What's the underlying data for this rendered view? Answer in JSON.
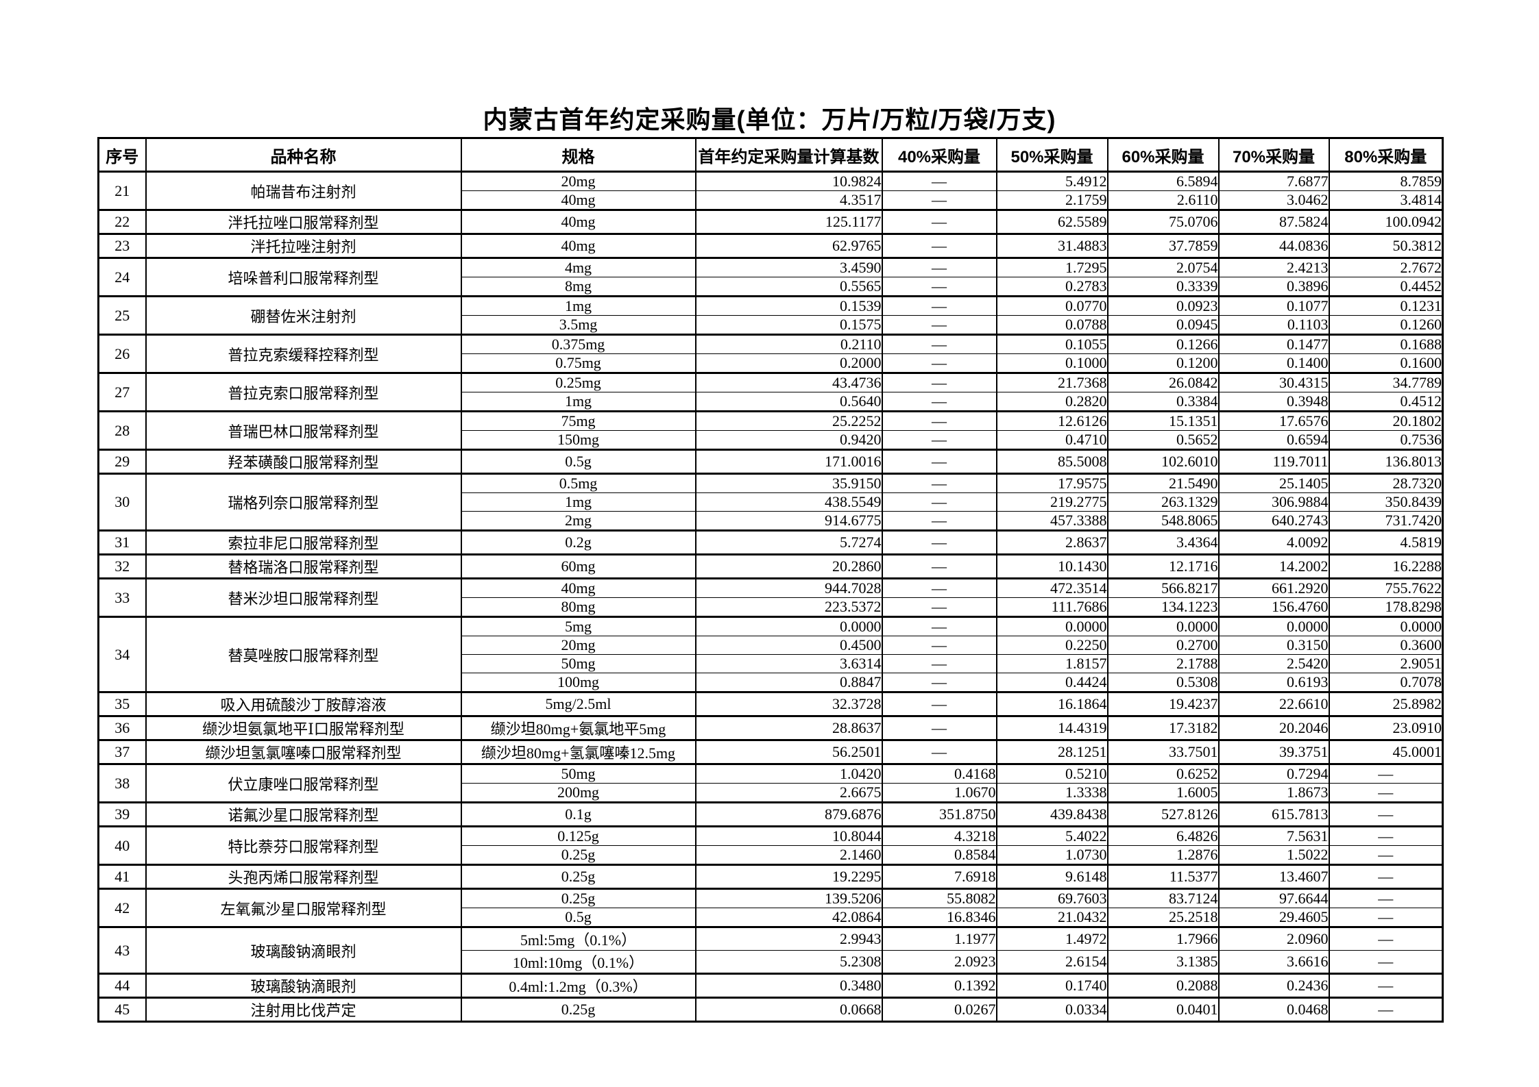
{
  "page": {
    "title": "内蒙古首年约定采购量(单位：万片/万粒/万袋/万支)"
  },
  "table": {
    "dash": "—",
    "headers": [
      "序号",
      "品种名称",
      "规格",
      "首年约定采购量计算基数",
      "40%采购量",
      "50%采购量",
      "60%采购量",
      "70%采购量",
      "80%采购量"
    ],
    "groups": [
      {
        "no": "21",
        "name": "帕瑞昔布注射剂",
        "rows": [
          {
            "spec": "20mg",
            "base": "10.9824",
            "p40": "—",
            "p50": "5.4912",
            "p60": "6.5894",
            "p70": "7.6877",
            "p80": "8.7859"
          },
          {
            "spec": "40mg",
            "base": "4.3517",
            "p40": "—",
            "p50": "2.1759",
            "p60": "2.6110",
            "p70": "3.0462",
            "p80": "3.4814"
          }
        ]
      },
      {
        "no": "22",
        "name": "泮托拉唑口服常释剂型",
        "rows": [
          {
            "spec": "40mg",
            "base": "125.1177",
            "p40": "—",
            "p50": "62.5589",
            "p60": "75.0706",
            "p70": "87.5824",
            "p80": "100.0942"
          }
        ]
      },
      {
        "no": "23",
        "name": "泮托拉唑注射剂",
        "rows": [
          {
            "spec": "40mg",
            "base": "62.9765",
            "p40": "—",
            "p50": "31.4883",
            "p60": "37.7859",
            "p70": "44.0836",
            "p80": "50.3812"
          }
        ]
      },
      {
        "no": "24",
        "name": "培哚普利口服常释剂型",
        "rows": [
          {
            "spec": "4mg",
            "base": "3.4590",
            "p40": "—",
            "p50": "1.7295",
            "p60": "2.0754",
            "p70": "2.4213",
            "p80": "2.7672"
          },
          {
            "spec": "8mg",
            "base": "0.5565",
            "p40": "—",
            "p50": "0.2783",
            "p60": "0.3339",
            "p70": "0.3896",
            "p80": "0.4452"
          }
        ]
      },
      {
        "no": "25",
        "name": "硼替佐米注射剂",
        "rows": [
          {
            "spec": "1mg",
            "base": "0.1539",
            "p40": "—",
            "p50": "0.0770",
            "p60": "0.0923",
            "p70": "0.1077",
            "p80": "0.1231"
          },
          {
            "spec": "3.5mg",
            "base": "0.1575",
            "p40": "—",
            "p50": "0.0788",
            "p60": "0.0945",
            "p70": "0.1103",
            "p80": "0.1260"
          }
        ]
      },
      {
        "no": "26",
        "name": "普拉克索缓释控释剂型",
        "rows": [
          {
            "spec": "0.375mg",
            "base": "0.2110",
            "p40": "—",
            "p50": "0.1055",
            "p60": "0.1266",
            "p70": "0.1477",
            "p80": "0.1688"
          },
          {
            "spec": "0.75mg",
            "base": "0.2000",
            "p40": "—",
            "p50": "0.1000",
            "p60": "0.1200",
            "p70": "0.1400",
            "p80": "0.1600"
          }
        ]
      },
      {
        "no": "27",
        "name": "普拉克索口服常释剂型",
        "rows": [
          {
            "spec": "0.25mg",
            "base": "43.4736",
            "p40": "—",
            "p50": "21.7368",
            "p60": "26.0842",
            "p70": "30.4315",
            "p80": "34.7789"
          },
          {
            "spec": "1mg",
            "base": "0.5640",
            "p40": "—",
            "p50": "0.2820",
            "p60": "0.3384",
            "p70": "0.3948",
            "p80": "0.4512"
          }
        ]
      },
      {
        "no": "28",
        "name": "普瑞巴林口服常释剂型",
        "rows": [
          {
            "spec": "75mg",
            "base": "25.2252",
            "p40": "—",
            "p50": "12.6126",
            "p60": "15.1351",
            "p70": "17.6576",
            "p80": "20.1802"
          },
          {
            "spec": "150mg",
            "base": "0.9420",
            "p40": "—",
            "p50": "0.4710",
            "p60": "0.5652",
            "p70": "0.6594",
            "p80": "0.7536"
          }
        ]
      },
      {
        "no": "29",
        "name": "羟苯磺酸口服常释剂型",
        "rows": [
          {
            "spec": "0.5g",
            "base": "171.0016",
            "p40": "—",
            "p50": "85.5008",
            "p60": "102.6010",
            "p70": "119.7011",
            "p80": "136.8013"
          }
        ]
      },
      {
        "no": "30",
        "name": "瑞格列奈口服常释剂型",
        "rows": [
          {
            "spec": "0.5mg",
            "base": "35.9150",
            "p40": "—",
            "p50": "17.9575",
            "p60": "21.5490",
            "p70": "25.1405",
            "p80": "28.7320"
          },
          {
            "spec": "1mg",
            "base": "438.5549",
            "p40": "—",
            "p50": "219.2775",
            "p60": "263.1329",
            "p70": "306.9884",
            "p80": "350.8439"
          },
          {
            "spec": "2mg",
            "base": "914.6775",
            "p40": "—",
            "p50": "457.3388",
            "p60": "548.8065",
            "p70": "640.2743",
            "p80": "731.7420"
          }
        ]
      },
      {
        "no": "31",
        "name": "索拉非尼口服常释剂型",
        "rows": [
          {
            "spec": "0.2g",
            "base": "5.7274",
            "p40": "—",
            "p50": "2.8637",
            "p60": "3.4364",
            "p70": "4.0092",
            "p80": "4.5819"
          }
        ]
      },
      {
        "no": "32",
        "name": "替格瑞洛口服常释剂型",
        "rows": [
          {
            "spec": "60mg",
            "base": "20.2860",
            "p40": "—",
            "p50": "10.1430",
            "p60": "12.1716",
            "p70": "14.2002",
            "p80": "16.2288"
          }
        ]
      },
      {
        "no": "33",
        "name": "替米沙坦口服常释剂型",
        "rows": [
          {
            "spec": "40mg",
            "base": "944.7028",
            "p40": "—",
            "p50": "472.3514",
            "p60": "566.8217",
            "p70": "661.2920",
            "p80": "755.7622"
          },
          {
            "spec": "80mg",
            "base": "223.5372",
            "p40": "—",
            "p50": "111.7686",
            "p60": "134.1223",
            "p70": "156.4760",
            "p80": "178.8298"
          }
        ]
      },
      {
        "no": "34",
        "name": "替莫唑胺口服常释剂型",
        "rows": [
          {
            "spec": "5mg",
            "base": "0.0000",
            "p40": "—",
            "p50": "0.0000",
            "p60": "0.0000",
            "p70": "0.0000",
            "p80": "0.0000"
          },
          {
            "spec": "20mg",
            "base": "0.4500",
            "p40": "—",
            "p50": "0.2250",
            "p60": "0.2700",
            "p70": "0.3150",
            "p80": "0.3600"
          },
          {
            "spec": "50mg",
            "base": "3.6314",
            "p40": "—",
            "p50": "1.8157",
            "p60": "2.1788",
            "p70": "2.5420",
            "p80": "2.9051"
          },
          {
            "spec": "100mg",
            "base": "0.8847",
            "p40": "—",
            "p50": "0.4424",
            "p60": "0.5308",
            "p70": "0.6193",
            "p80": "0.7078"
          }
        ]
      },
      {
        "no": "35",
        "name": "吸入用硫酸沙丁胺醇溶液",
        "rows": [
          {
            "spec": "5mg/2.5ml",
            "base": "32.3728",
            "p40": "—",
            "p50": "16.1864",
            "p60": "19.4237",
            "p70": "22.6610",
            "p80": "25.8982"
          }
        ]
      },
      {
        "no": "36",
        "name": "缬沙坦氨氯地平Ⅰ口服常释剂型",
        "rows": [
          {
            "spec": "缬沙坦80mg+氨氯地平5mg",
            "base": "28.8637",
            "p40": "—",
            "p50": "14.4319",
            "p60": "17.3182",
            "p70": "20.2046",
            "p80": "23.0910"
          }
        ]
      },
      {
        "no": "37",
        "name": "缬沙坦氢氯噻嗪口服常释剂型",
        "rows": [
          {
            "spec": "缬沙坦80mg+氢氯噻嗪12.5mg",
            "base": "56.2501",
            "p40": "—",
            "p50": "28.1251",
            "p60": "33.7501",
            "p70": "39.3751",
            "p80": "45.0001"
          }
        ]
      },
      {
        "no": "38",
        "name": "伏立康唑口服常释剂型",
        "rows": [
          {
            "spec": "50mg",
            "base": "1.0420",
            "p40": "0.4168",
            "p50": "0.5210",
            "p60": "0.6252",
            "p70": "0.7294",
            "p80": "—"
          },
          {
            "spec": "200mg",
            "base": "2.6675",
            "p40": "1.0670",
            "p50": "1.3338",
            "p60": "1.6005",
            "p70": "1.8673",
            "p80": "—"
          }
        ]
      },
      {
        "no": "39",
        "name": "诺氟沙星口服常释剂型",
        "rows": [
          {
            "spec": "0.1g",
            "base": "879.6876",
            "p40": "351.8750",
            "p50": "439.8438",
            "p60": "527.8126",
            "p70": "615.7813",
            "p80": "—"
          }
        ]
      },
      {
        "no": "40",
        "name": "特比萘芬口服常释剂型",
        "rows": [
          {
            "spec": "0.125g",
            "base": "10.8044",
            "p40": "4.3218",
            "p50": "5.4022",
            "p60": "6.4826",
            "p70": "7.5631",
            "p80": "—"
          },
          {
            "spec": "0.25g",
            "base": "2.1460",
            "p40": "0.8584",
            "p50": "1.0730",
            "p60": "1.2876",
            "p70": "1.5022",
            "p80": "—"
          }
        ]
      },
      {
        "no": "41",
        "name": "头孢丙烯口服常释剂型",
        "rows": [
          {
            "spec": "0.25g",
            "base": "19.2295",
            "p40": "7.6918",
            "p50": "9.6148",
            "p60": "11.5377",
            "p70": "13.4607",
            "p80": "—"
          }
        ]
      },
      {
        "no": "42",
        "name": "左氧氟沙星口服常释剂型",
        "rows": [
          {
            "spec": "0.25g",
            "base": "139.5206",
            "p40": "55.8082",
            "p50": "69.7603",
            "p60": "83.7124",
            "p70": "97.6644",
            "p80": "—"
          },
          {
            "spec": "0.5g",
            "base": "42.0864",
            "p40": "16.8346",
            "p50": "21.0432",
            "p60": "25.2518",
            "p70": "29.4605",
            "p80": "—"
          }
        ]
      },
      {
        "no": "43",
        "name": "玻璃酸钠滴眼剂",
        "rows": [
          {
            "spec": "5ml:5mg（0.1%）",
            "base": "2.9943",
            "p40": "1.1977",
            "p50": "1.4972",
            "p60": "1.7966",
            "p70": "2.0960",
            "p80": "—"
          },
          {
            "spec": "10ml:10mg（0.1%）",
            "base": "5.2308",
            "p40": "2.0923",
            "p50": "2.6154",
            "p60": "3.1385",
            "p70": "3.6616",
            "p80": "—"
          }
        ]
      },
      {
        "no": "44",
        "name": "玻璃酸钠滴眼剂",
        "rows": [
          {
            "spec": "0.4ml:1.2mg（0.3%）",
            "base": "0.3480",
            "p40": "0.1392",
            "p50": "0.1740",
            "p60": "0.2088",
            "p70": "0.2436",
            "p80": "—"
          }
        ]
      },
      {
        "no": "45",
        "name": "注射用比伐芦定",
        "rows": [
          {
            "spec": "0.25g",
            "base": "0.0668",
            "p40": "0.0267",
            "p50": "0.0334",
            "p60": "0.0401",
            "p70": "0.0468",
            "p80": "—"
          }
        ]
      }
    ]
  }
}
